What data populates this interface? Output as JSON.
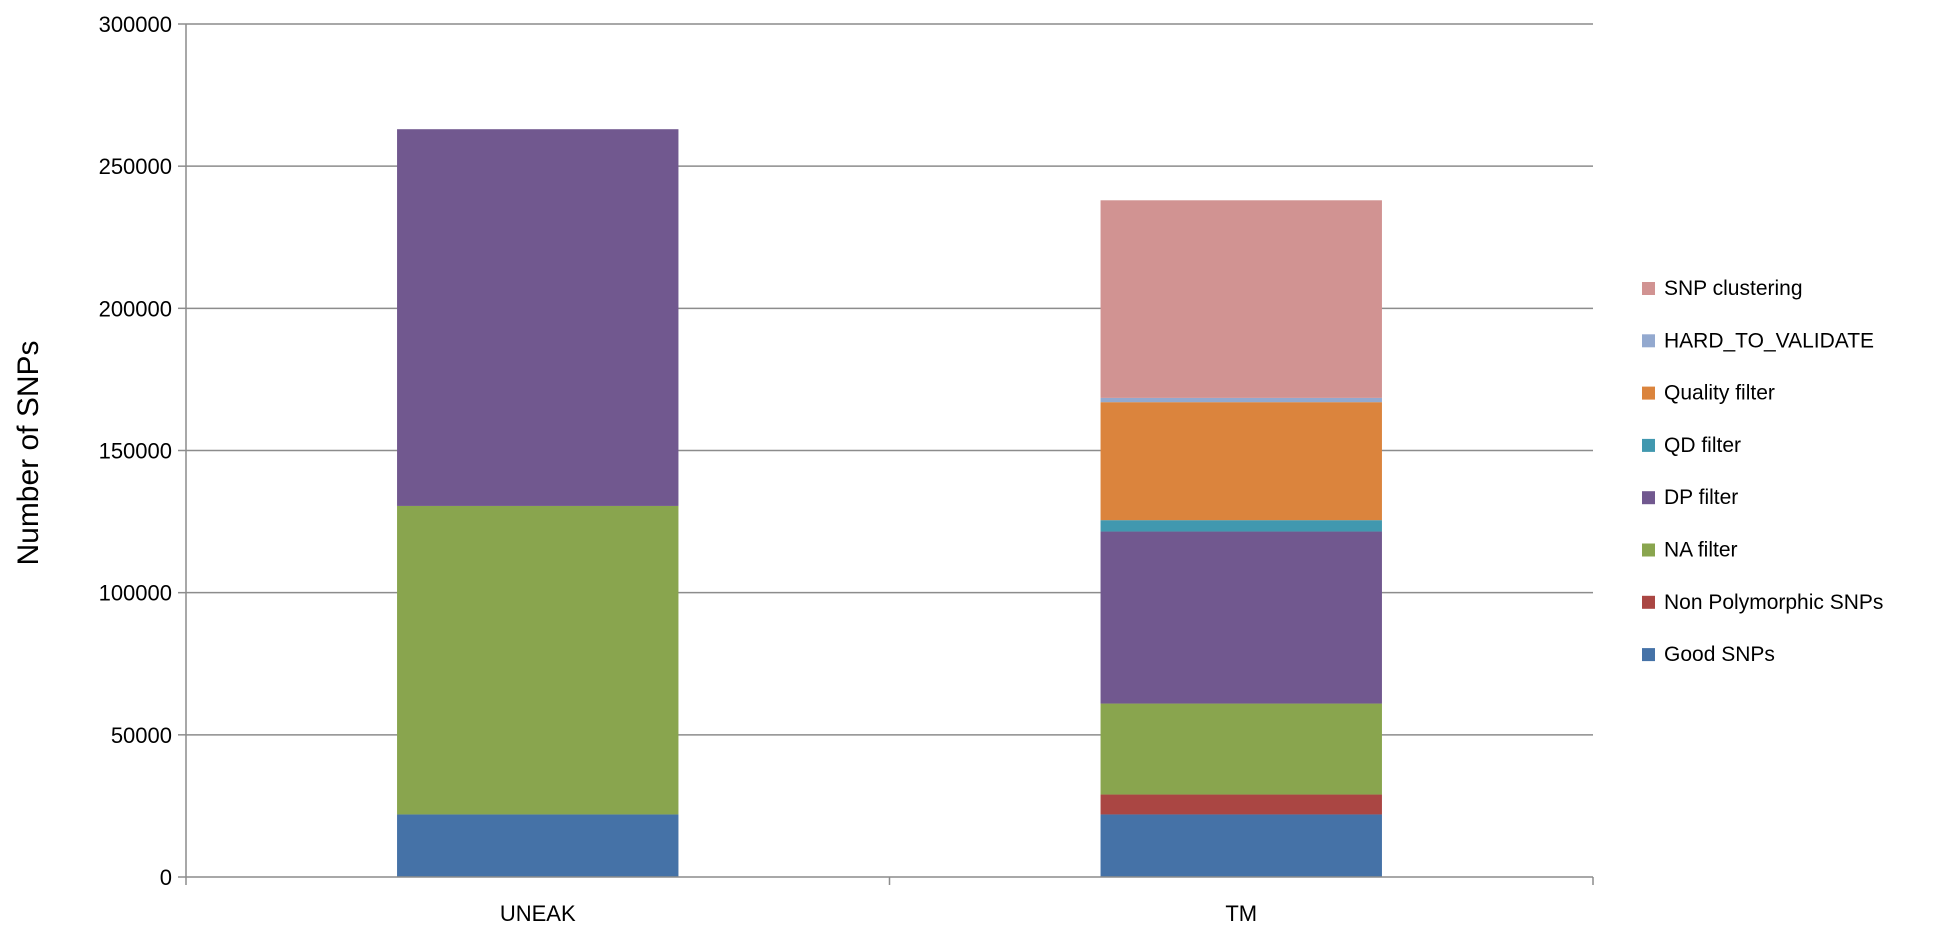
{
  "chart_data": {
    "type": "bar",
    "stacked": true,
    "title": "",
    "xlabel": "",
    "ylabel": "Number  of  SNPs",
    "categories": [
      "UNEAK",
      "TM"
    ],
    "ylim": [
      0,
      300000
    ],
    "yticks": [
      0,
      50000,
      100000,
      150000,
      200000,
      250000,
      300000
    ],
    "grid": true,
    "legend_position": "right",
    "series": [
      {
        "name": "Good SNPs",
        "color": "#4572A7",
        "values": [
          22000,
          22000
        ]
      },
      {
        "name": "Non Polymorphic SNPs",
        "color": "#AA4643",
        "values": [
          0,
          7000
        ]
      },
      {
        "name": "NA filter",
        "color": "#89A54E",
        "values": [
          108500,
          32000
        ]
      },
      {
        "name": "DP filter",
        "color": "#71588F",
        "values": [
          132500,
          60500
        ]
      },
      {
        "name": "QD filter",
        "color": "#4198AF",
        "values": [
          0,
          4000
        ]
      },
      {
        "name": "Quality filter",
        "color": "#DB843D",
        "values": [
          0,
          41500
        ]
      },
      {
        "name": "HARD_TO_VALIDATE",
        "color": "#93A9CF",
        "values": [
          0,
          1500
        ]
      },
      {
        "name": "SNP clustering",
        "color": "#D19392",
        "values": [
          0,
          69500
        ]
      }
    ]
  }
}
